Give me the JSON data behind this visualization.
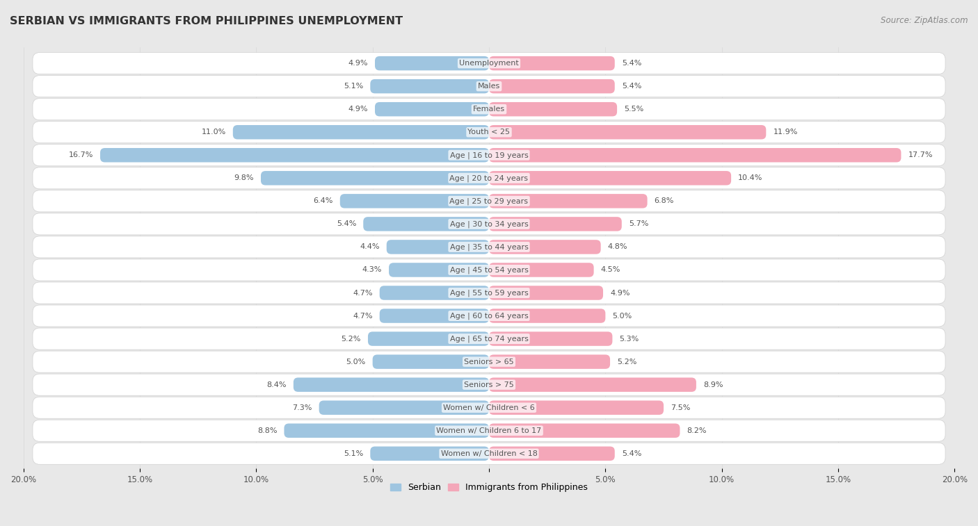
{
  "title": "SERBIAN VS IMMIGRANTS FROM PHILIPPINES UNEMPLOYMENT",
  "source": "Source: ZipAtlas.com",
  "categories": [
    "Unemployment",
    "Males",
    "Females",
    "Youth < 25",
    "Age | 16 to 19 years",
    "Age | 20 to 24 years",
    "Age | 25 to 29 years",
    "Age | 30 to 34 years",
    "Age | 35 to 44 years",
    "Age | 45 to 54 years",
    "Age | 55 to 59 years",
    "Age | 60 to 64 years",
    "Age | 65 to 74 years",
    "Seniors > 65",
    "Seniors > 75",
    "Women w/ Children < 6",
    "Women w/ Children 6 to 17",
    "Women w/ Children < 18"
  ],
  "serbian": [
    4.9,
    5.1,
    4.9,
    11.0,
    16.7,
    9.8,
    6.4,
    5.4,
    4.4,
    4.3,
    4.7,
    4.7,
    5.2,
    5.0,
    8.4,
    7.3,
    8.8,
    5.1
  ],
  "philippines": [
    5.4,
    5.4,
    5.5,
    11.9,
    17.7,
    10.4,
    6.8,
    5.7,
    4.8,
    4.5,
    4.9,
    5.0,
    5.3,
    5.2,
    8.9,
    7.5,
    8.2,
    5.4
  ],
  "serbian_color": "#9fc5e0",
  "philippines_color": "#f4a7b9",
  "row_bg_color": "#ffffff",
  "page_bg_color": "#e8e8e8",
  "separator_color": "#d0d0d0",
  "xlim": 20.0,
  "label_serbian": "Serbian",
  "label_philippines": "Immigrants from Philippines",
  "xtick_labels": [
    "20.0%",
    "15.0%",
    "10.0%",
    "5.0%",
    "",
    "5.0%",
    "10.0%",
    "15.0%",
    "20.0%"
  ],
  "xtick_positions": [
    -20,
    -15,
    -10,
    -5,
    0,
    5,
    10,
    15,
    20
  ],
  "value_label_color": "#555555",
  "category_label_color": "#555555",
  "title_color": "#333333",
  "source_color": "#888888"
}
